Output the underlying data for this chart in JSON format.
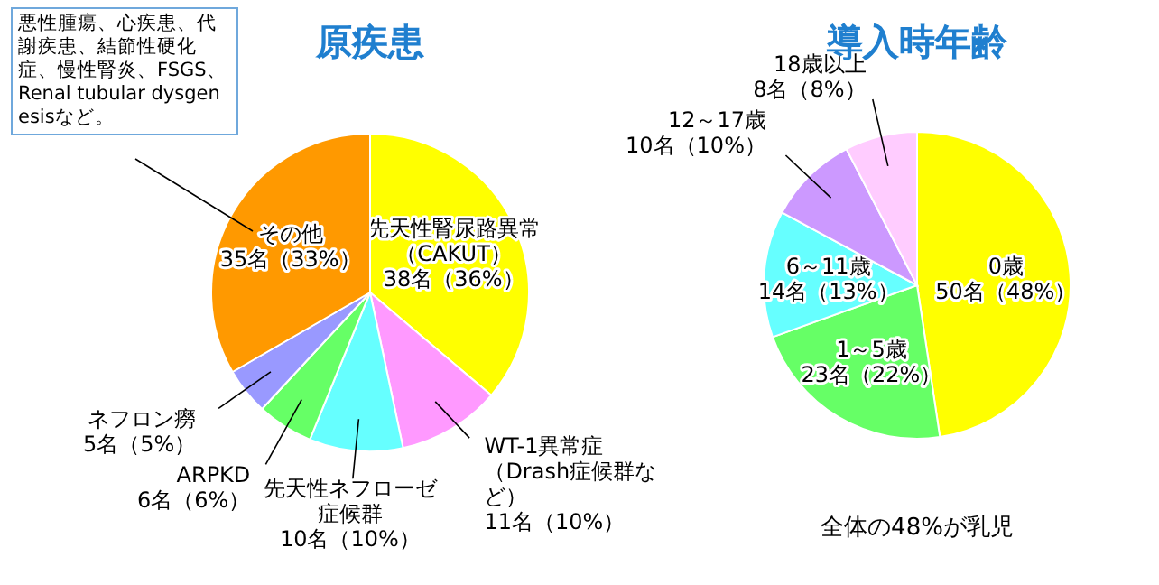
{
  "chart_data": [
    {
      "type": "pie",
      "title": "原疾患",
      "categories": [
        "先天性腎尿路異常（CAKUT）",
        "WT-1異常症（Drash症候群など）",
        "先天性ネフローゼ症候群",
        "ARPKD",
        "ネフロン癆",
        "その他"
      ],
      "values": [
        38,
        11,
        10,
        6,
        5,
        35
      ],
      "value_labels": [
        "38名（36%）",
        "11名（10%）",
        "10名（10%）",
        "6名（6%）",
        "5名（5%）",
        "35名（33%）"
      ],
      "colors": [
        "#ffff00",
        "#ff99ff",
        "#66ffff",
        "#66ff66",
        "#9999ff",
        "#ff9900"
      ],
      "annotations": [
        "悪性腫瘍、心疾患、代謝疾患、結節性硬化症、慢性腎炎、FSGS、Renal tubular dysgenesisなど。"
      ]
    },
    {
      "type": "pie",
      "title": "導入時年齢",
      "categories": [
        "0歳",
        "1～5歳",
        "6～11歳",
        "12～17歳",
        "18歳以上"
      ],
      "values": [
        50,
        23,
        14,
        10,
        8
      ],
      "value_labels": [
        "50名（48%）",
        "23名（22%）",
        "14名（13%）",
        "10名（10%）",
        "8名（8%）"
      ],
      "colors": [
        "#ffff00",
        "#66ff66",
        "#66ffff",
        "#cc99ff",
        "#ffccff"
      ],
      "annotations": [
        "全体の48%が乳児"
      ]
    }
  ]
}
